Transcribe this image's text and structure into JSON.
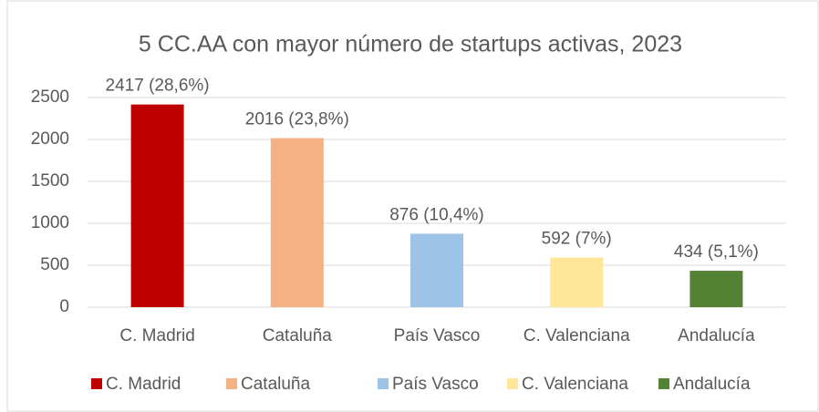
{
  "chart_data": {
    "type": "bar",
    "title": "5 CC.AA con mayor número de startups activas, 2023",
    "categories": [
      "C. Madrid",
      "Cataluña",
      "País Vasco",
      "C. Valenciana",
      "Andalucía"
    ],
    "values": [
      2417,
      2016,
      876,
      592,
      434
    ],
    "value_labels": [
      "2417 (28,6%)",
      "2016 (23,8%)",
      "876 (10,4%)",
      "592 (7%)",
      "434 (5,1%)"
    ],
    "colors": [
      "#c00000",
      "#f4b183",
      "#9dc3e6",
      "#ffe699",
      "#548235"
    ],
    "ylim": [
      0,
      2500
    ],
    "yticks": [
      0,
      500,
      1000,
      1500,
      2000,
      2500
    ],
    "grid": true,
    "legend": "bottom"
  }
}
